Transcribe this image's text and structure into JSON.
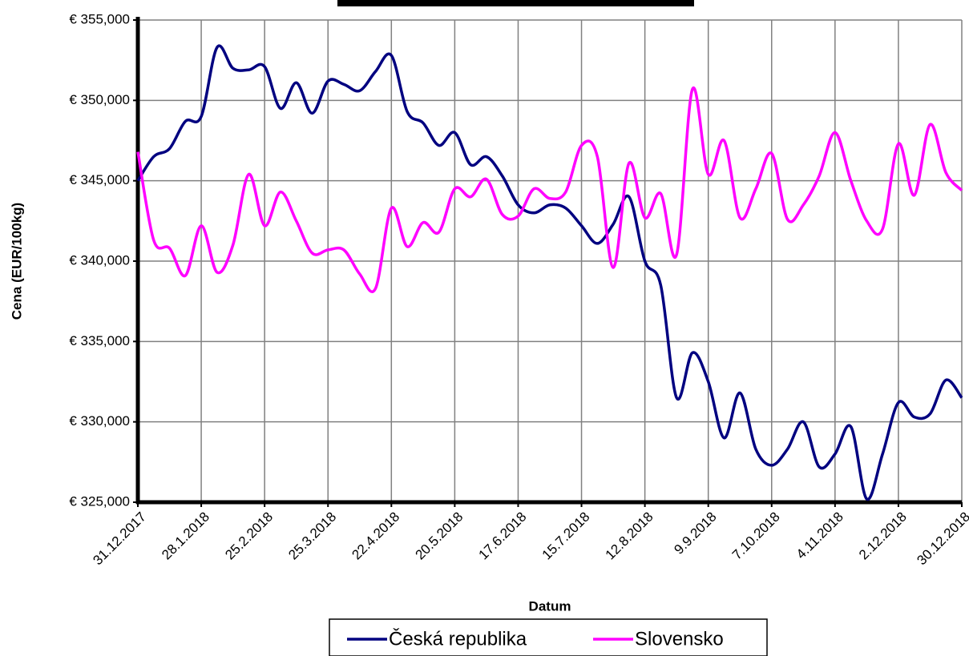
{
  "chart_data": {
    "type": "line",
    "xlabel": "Datum",
    "ylabel": "Cena (EUR/100kg)",
    "categories": [
      "31.12.2017",
      null,
      null,
      null,
      "28.1.2018",
      null,
      null,
      null,
      "25.2.2018",
      null,
      null,
      null,
      "25.3.2018",
      null,
      null,
      null,
      "22.4.2018",
      null,
      null,
      null,
      "20.5.2018",
      null,
      null,
      null,
      "17.6.2018",
      null,
      null,
      null,
      "15.7.2018",
      null,
      null,
      null,
      "12.8.2018",
      null,
      null,
      null,
      "9.9.2018",
      null,
      null,
      null,
      "7.10.2018",
      null,
      null,
      null,
      "4.11.2018",
      null,
      null,
      null,
      "2.12.2018",
      null,
      null,
      null,
      "30.12.2018"
    ],
    "series": [
      {
        "name": "Česká republika",
        "color": "#000080",
        "values": [
          345,
          346.5,
          347,
          348.7,
          349,
          353.3,
          352,
          351.9,
          352.1,
          349.5,
          351.1,
          349.2,
          351.2,
          351,
          350.6,
          351.8,
          352.8,
          349.3,
          348.6,
          347.2,
          348,
          346,
          346.5,
          345.3,
          343.5,
          343,
          343.5,
          343.3,
          342.2,
          341.1,
          342.3,
          344,
          340,
          338.5,
          331.5,
          334.3,
          332.5,
          329,
          331.8,
          328.3,
          327.3,
          328.3,
          330,
          327.2,
          328,
          329.7,
          325.2,
          328,
          331.2,
          330.3,
          330.5,
          332.6,
          331.5
        ]
      },
      {
        "name": "Slovensko",
        "color": "#ff00ff",
        "values": [
          346.8,
          341.3,
          340.8,
          339.1,
          342.2,
          339.3,
          341,
          345.4,
          342.2,
          344.3,
          342.5,
          340.5,
          340.7,
          340.7,
          339.2,
          338.3,
          343.3,
          340.9,
          342.4,
          341.8,
          344.5,
          344,
          345.1,
          342.9,
          342.8,
          344.5,
          343.9,
          344.3,
          347.2,
          346.5,
          339.6,
          346.1,
          342.7,
          344.2,
          340.4,
          350.7,
          345.4,
          347.5,
          342.7,
          344.5,
          346.7,
          342.6,
          343.5,
          345.3,
          348,
          345,
          342.5,
          342,
          347.3,
          344.1,
          348.5,
          345.5,
          344.4
        ]
      }
    ],
    "ylim": [
      325,
      355
    ],
    "yticks": [
      {
        "value": 325,
        "label": "€ 325,000"
      },
      {
        "value": 330,
        "label": "€ 330,000"
      },
      {
        "value": 335,
        "label": "€ 335,000"
      },
      {
        "value": 340,
        "label": "€ 340,000"
      },
      {
        "value": 345,
        "label": "€ 345,000"
      },
      {
        "value": 350,
        "label": "€ 350,000"
      },
      {
        "value": 355,
        "label": "€ 355,000"
      }
    ],
    "grid": true,
    "legend": "bottom"
  }
}
